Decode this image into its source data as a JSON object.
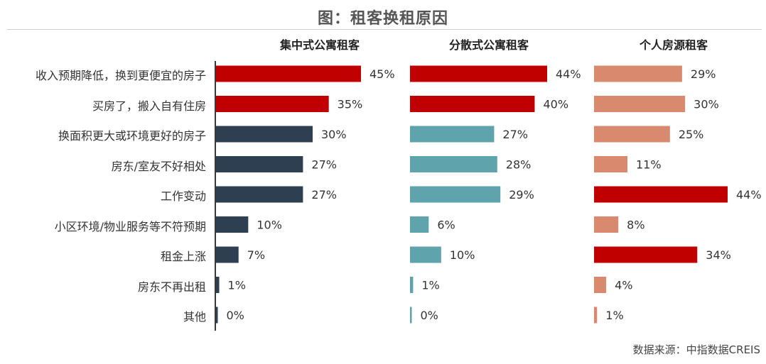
{
  "title": "图：租客换租原因",
  "source": "数据来源：中指数据CREIS",
  "colors": {
    "highlight": "#c00000",
    "panel1": "#2f3f52",
    "panel2": "#5fa3ad",
    "panel3": "#d98a6e"
  },
  "chart_data": {
    "type": "bar",
    "orientation": "horizontal",
    "categories": [
      "收入预期降低，换到更便宜的房子",
      "买房了，搬入自有住房",
      "换面积更大或环境更好的房子",
      "房东/室友不好相处",
      "工作变动",
      "小区环境/物业服务等不符预期",
      "租金上涨",
      "房东不再出租",
      "其他"
    ],
    "series": [
      {
        "name": "集中式公寓租客",
        "values": [
          45,
          35,
          30,
          27,
          27,
          10,
          7,
          1,
          0
        ],
        "labels": [
          "45%",
          "35%",
          "30%",
          "27%",
          "27%",
          "10%",
          "7%",
          "1%",
          "0%"
        ],
        "highlight": [
          true,
          true,
          false,
          false,
          false,
          false,
          false,
          false,
          false
        ]
      },
      {
        "name": "分散式公寓租客",
        "values": [
          44,
          40,
          27,
          28,
          29,
          6,
          10,
          1,
          0
        ],
        "labels": [
          "44%",
          "40%",
          "27%",
          "28%",
          "29%",
          "6%",
          "10%",
          "1%",
          "0%"
        ],
        "highlight": [
          true,
          true,
          false,
          false,
          false,
          false,
          false,
          false,
          false
        ]
      },
      {
        "name": "个人房源租客",
        "values": [
          29,
          30,
          25,
          11,
          44,
          8,
          34,
          4,
          1
        ],
        "labels": [
          "29%",
          "30%",
          "25%",
          "11%",
          "44%",
          "8%",
          "34%",
          "4%",
          "1%"
        ],
        "highlight": [
          false,
          false,
          false,
          false,
          true,
          false,
          true,
          false,
          false
        ]
      }
    ],
    "unit": "%",
    "legend": "none",
    "grid": false
  }
}
